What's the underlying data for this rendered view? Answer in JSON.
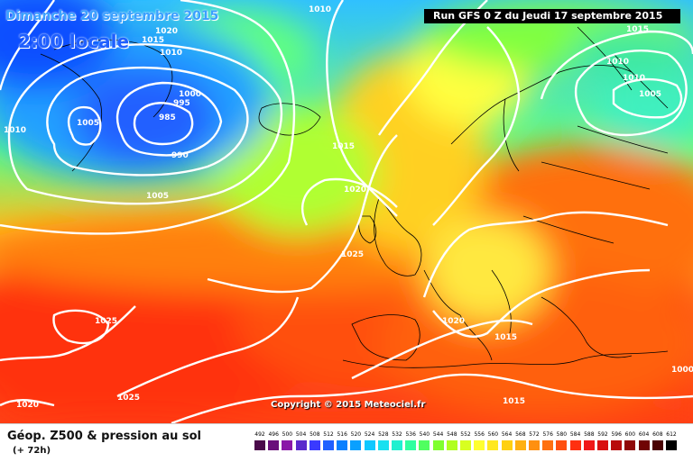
{
  "header": {
    "date": "Dimanche 20 septembre 2015",
    "time": "2:00 locale",
    "run": "Run GFS 0 Z du Jeudi 17 septembre 2015"
  },
  "copyright": "Copyright © 2015 Meteociel.fr",
  "footer": {
    "title": "Géop. Z500 & pression au sol",
    "subtitle": "(+ 72h)"
  },
  "isobar_labels": [
    "1010",
    "1020",
    "1015",
    "1010",
    "1005",
    "1010",
    "995",
    "1000",
    "985",
    "990",
    "1005",
    "1010",
    "1015",
    "1020",
    "1025",
    "1025",
    "1020",
    "1025",
    "1020",
    "1015",
    "1015",
    "1015",
    "1010",
    "1005",
    "1000"
  ],
  "scale": {
    "ticks": [
      "492",
      "496",
      "500",
      "504",
      "508",
      "512",
      "516",
      "520",
      "524",
      "528",
      "532",
      "536",
      "540",
      "544",
      "548",
      "552",
      "556",
      "560",
      "564",
      "568",
      "572",
      "576",
      "580",
      "584",
      "588",
      "592",
      "596",
      "600",
      "604",
      "608",
      "612"
    ],
    "colors": [
      "#4a0a4a",
      "#6a107a",
      "#8a18a8",
      "#5a2acc",
      "#3a3aff",
      "#2060ff",
      "#0a80ff",
      "#0aa0ff",
      "#10c8ff",
      "#18e0f0",
      "#20f0d0",
      "#30ffa0",
      "#50ff60",
      "#80ff30",
      "#b0ff20",
      "#d8ff20",
      "#ffff30",
      "#ffe820",
      "#ffd010",
      "#ffb010",
      "#ff9010",
      "#ff7010",
      "#ff5010",
      "#ff3010",
      "#f01818",
      "#d81010",
      "#b80c0c",
      "#900808",
      "#700404",
      "#4a0202",
      "#000000"
    ]
  }
}
